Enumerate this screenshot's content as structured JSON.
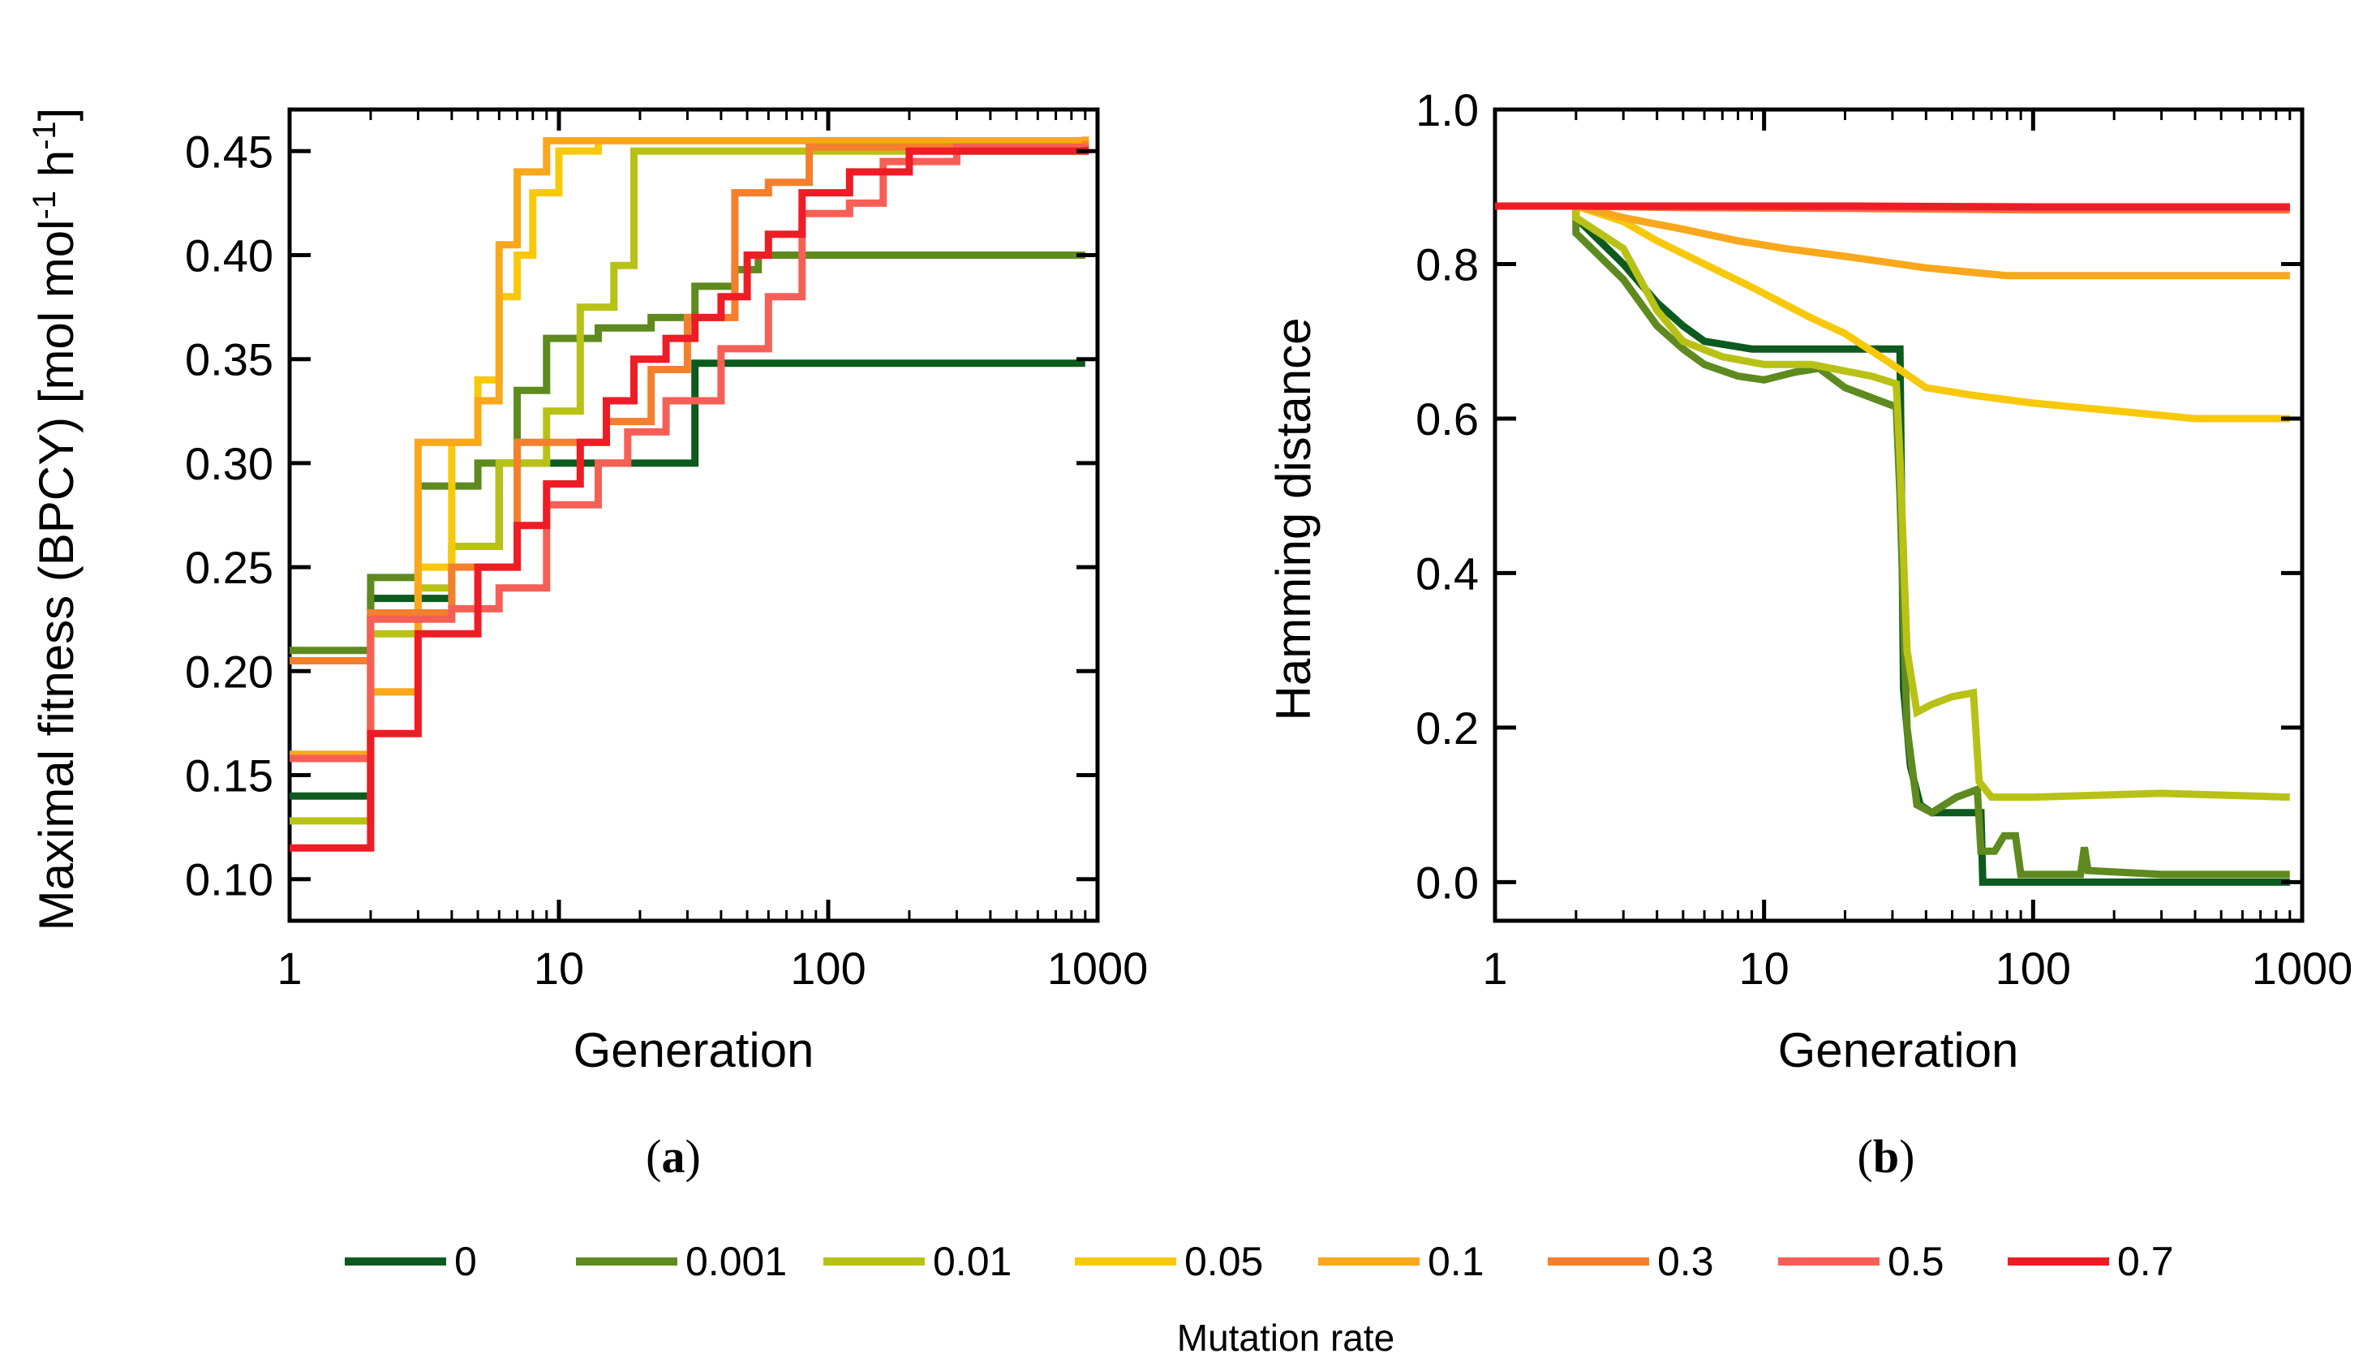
{
  "chart_data": [
    {
      "type": "line",
      "panel_label": "(a)",
      "panel_label_parts": [
        "(",
        "a",
        ")"
      ],
      "xlabel": "Generation",
      "ylabel": "Maximal fitness (BPCY) [mol mol-1 h-1]",
      "ylabel_parts": {
        "main": "Maximal fitness (BPCY) [mol mol",
        "sup1": "-1",
        "mid": " h",
        "sup2": "-1",
        "end": "]"
      },
      "xscale": "log",
      "xlim": [
        1,
        1000
      ],
      "ylim": [
        0.08,
        0.47
      ],
      "xticks": [
        1,
        10,
        100,
        1000
      ],
      "xtick_labels": [
        "1",
        "10",
        "100",
        "1000"
      ],
      "yticks": [
        0.1,
        0.15,
        0.2,
        0.25,
        0.3,
        0.35,
        0.4,
        0.45
      ],
      "ytick_labels": [
        "0.10",
        "0.15",
        "0.20",
        "0.25",
        "0.30",
        "0.35",
        "0.40",
        "0.45"
      ],
      "series": [
        {
          "name": "0",
          "points": [
            [
              1,
              0.14
            ],
            [
              2,
              0.235
            ],
            [
              4,
              0.26
            ],
            [
              6,
              0.3
            ],
            [
              32,
              0.348
            ],
            [
              900,
              0.348
            ]
          ]
        },
        {
          "name": "0.001",
          "points": [
            [
              1,
              0.21
            ],
            [
              2,
              0.245
            ],
            [
              3,
              0.289
            ],
            [
              5,
              0.3
            ],
            [
              7,
              0.335
            ],
            [
              9,
              0.36
            ],
            [
              14,
              0.365
            ],
            [
              22,
              0.37
            ],
            [
              32,
              0.385
            ],
            [
              45,
              0.393
            ],
            [
              55,
              0.4
            ],
            [
              900,
              0.4
            ]
          ]
        },
        {
          "name": "0.01",
          "points": [
            [
              1,
              0.128
            ],
            [
              2,
              0.218
            ],
            [
              3,
              0.24
            ],
            [
              4,
              0.26
            ],
            [
              6,
              0.3
            ],
            [
              9,
              0.325
            ],
            [
              12,
              0.375
            ],
            [
              16,
              0.395
            ],
            [
              19,
              0.45
            ],
            [
              900,
              0.455
            ]
          ]
        },
        {
          "name": "0.05",
          "points": [
            [
              1,
              0.16
            ],
            [
              2,
              0.19
            ],
            [
              3,
              0.25
            ],
            [
              4,
              0.31
            ],
            [
              5,
              0.34
            ],
            [
              6,
              0.38
            ],
            [
              7,
              0.4
            ],
            [
              8,
              0.43
            ],
            [
              10,
              0.45
            ],
            [
              14,
              0.455
            ],
            [
              900,
              0.456
            ]
          ]
        },
        {
          "name": "0.1",
          "points": [
            [
              1,
              0.16
            ],
            [
              2,
              0.19
            ],
            [
              3,
              0.31
            ],
            [
              5,
              0.33
            ],
            [
              6,
              0.405
            ],
            [
              7,
              0.44
            ],
            [
              9,
              0.455
            ],
            [
              900,
              0.457
            ]
          ]
        },
        {
          "name": "0.3",
          "points": [
            [
              1,
              0.205
            ],
            [
              2,
              0.228
            ],
            [
              4,
              0.25
            ],
            [
              7,
              0.31
            ],
            [
              15,
              0.32
            ],
            [
              22,
              0.345
            ],
            [
              30,
              0.37
            ],
            [
              45,
              0.43
            ],
            [
              60,
              0.435
            ],
            [
              85,
              0.452
            ],
            [
              900,
              0.455
            ]
          ]
        },
        {
          "name": "0.5",
          "points": [
            [
              1,
              0.158
            ],
            [
              2,
              0.225
            ],
            [
              4,
              0.23
            ],
            [
              6,
              0.24
            ],
            [
              9,
              0.28
            ],
            [
              14,
              0.3
            ],
            [
              18,
              0.315
            ],
            [
              25,
              0.33
            ],
            [
              40,
              0.355
            ],
            [
              60,
              0.38
            ],
            [
              80,
              0.42
            ],
            [
              120,
              0.425
            ],
            [
              160,
              0.445
            ],
            [
              300,
              0.452
            ],
            [
              900,
              0.453
            ]
          ]
        },
        {
          "name": "0.7",
          "points": [
            [
              1,
              0.115
            ],
            [
              2,
              0.17
            ],
            [
              3,
              0.218
            ],
            [
              5,
              0.25
            ],
            [
              7,
              0.27
            ],
            [
              9,
              0.29
            ],
            [
              12,
              0.31
            ],
            [
              15,
              0.33
            ],
            [
              19,
              0.35
            ],
            [
              25,
              0.36
            ],
            [
              32,
              0.37
            ],
            [
              40,
              0.38
            ],
            [
              50,
              0.4
            ],
            [
              60,
              0.41
            ],
            [
              80,
              0.43
            ],
            [
              120,
              0.44
            ],
            [
              200,
              0.45
            ],
            [
              900,
              0.452
            ]
          ]
        }
      ]
    },
    {
      "type": "line",
      "panel_label": "(b)",
      "panel_label_parts": [
        "(",
        "b",
        ")"
      ],
      "xlabel": "Generation",
      "ylabel": "Hamming distance",
      "xscale": "log",
      "xlim": [
        1,
        1000
      ],
      "ylim": [
        -0.05,
        1.0
      ],
      "xticks": [
        1,
        10,
        100,
        1000
      ],
      "xtick_labels": [
        "1",
        "10",
        "100",
        "1000"
      ],
      "yticks": [
        0.0,
        0.2,
        0.4,
        0.6,
        0.8,
        1.0
      ],
      "ytick_labels": [
        "0.0",
        "0.2",
        "0.4",
        "0.6",
        "0.8",
        "1.0"
      ],
      "series": [
        {
          "name": "0",
          "points": [
            [
              1,
              0.875
            ],
            [
              2,
              0.875
            ],
            [
              2,
              0.86
            ],
            [
              3,
              0.8
            ],
            [
              4,
              0.75
            ],
            [
              5,
              0.72
            ],
            [
              6,
              0.7
            ],
            [
              9,
              0.69
            ],
            [
              32,
              0.69
            ],
            [
              33,
              0.25
            ],
            [
              35,
              0.15
            ],
            [
              38,
              0.1
            ],
            [
              42,
              0.09
            ],
            [
              64,
              0.09
            ],
            [
              65,
              0.0
            ],
            [
              900,
              0.0
            ]
          ]
        },
        {
          "name": "0.001",
          "points": [
            [
              1,
              0.875
            ],
            [
              2,
              0.875
            ],
            [
              2,
              0.84
            ],
            [
              3,
              0.78
            ],
            [
              4,
              0.72
            ],
            [
              5,
              0.69
            ],
            [
              6,
              0.67
            ],
            [
              8,
              0.655
            ],
            [
              10,
              0.65
            ],
            [
              13,
              0.66
            ],
            [
              16,
              0.665
            ],
            [
              20,
              0.64
            ],
            [
              26,
              0.625
            ],
            [
              31,
              0.615
            ],
            [
              32,
              0.5
            ],
            [
              34,
              0.2
            ],
            [
              37,
              0.1
            ],
            [
              42,
              0.09
            ],
            [
              52,
              0.11
            ],
            [
              62,
              0.12
            ],
            [
              64,
              0.04
            ],
            [
              72,
              0.04
            ],
            [
              78,
              0.06
            ],
            [
              86,
              0.06
            ],
            [
              90,
              0.01
            ],
            [
              150,
              0.01
            ],
            [
              155,
              0.045
            ],
            [
              160,
              0.015
            ],
            [
              300,
              0.01
            ],
            [
              900,
              0.01
            ]
          ]
        },
        {
          "name": "0.01",
          "points": [
            [
              1,
              0.875
            ],
            [
              2,
              0.875
            ],
            [
              2,
              0.86
            ],
            [
              3,
              0.82
            ],
            [
              4,
              0.74
            ],
            [
              5,
              0.7
            ],
            [
              7,
              0.68
            ],
            [
              10,
              0.67
            ],
            [
              15,
              0.67
            ],
            [
              25,
              0.655
            ],
            [
              31,
              0.645
            ],
            [
              32,
              0.55
            ],
            [
              34,
              0.3
            ],
            [
              37,
              0.22
            ],
            [
              42,
              0.23
            ],
            [
              50,
              0.24
            ],
            [
              60,
              0.245
            ],
            [
              63,
              0.13
            ],
            [
              70,
              0.11
            ],
            [
              100,
              0.11
            ],
            [
              300,
              0.115
            ],
            [
              900,
              0.11
            ]
          ]
        },
        {
          "name": "0.05",
          "points": [
            [
              1,
              0.875
            ],
            [
              2,
              0.875
            ],
            [
              3,
              0.855
            ],
            [
              4,
              0.83
            ],
            [
              6,
              0.8
            ],
            [
              9,
              0.77
            ],
            [
              15,
              0.73
            ],
            [
              20,
              0.71
            ],
            [
              30,
              0.67
            ],
            [
              40,
              0.64
            ],
            [
              60,
              0.63
            ],
            [
              100,
              0.62
            ],
            [
              200,
              0.61
            ],
            [
              400,
              0.6
            ],
            [
              900,
              0.6
            ]
          ]
        },
        {
          "name": "0.1",
          "points": [
            [
              1,
              0.875
            ],
            [
              2,
              0.875
            ],
            [
              3,
              0.86
            ],
            [
              5,
              0.845
            ],
            [
              8,
              0.83
            ],
            [
              12,
              0.82
            ],
            [
              20,
              0.81
            ],
            [
              40,
              0.795
            ],
            [
              80,
              0.785
            ],
            [
              200,
              0.785
            ],
            [
              900,
              0.785
            ]
          ]
        },
        {
          "name": "0.3",
          "points": [
            [
              1,
              0.875
            ],
            [
              2,
              0.875
            ],
            [
              5,
              0.873
            ],
            [
              20,
              0.872
            ],
            [
              100,
              0.87
            ],
            [
              900,
              0.87
            ]
          ]
        },
        {
          "name": "0.5",
          "points": [
            [
              1,
              0.875
            ],
            [
              2,
              0.875
            ],
            [
              5,
              0.874
            ],
            [
              20,
              0.873
            ],
            [
              100,
              0.872
            ],
            [
              900,
              0.872
            ]
          ]
        },
        {
          "name": "0.7",
          "points": [
            [
              1,
              0.875
            ],
            [
              2,
              0.875
            ],
            [
              5,
              0.875
            ],
            [
              20,
              0.875
            ],
            [
              100,
              0.874
            ],
            [
              900,
              0.874
            ]
          ]
        }
      ]
    }
  ],
  "legend": {
    "title": "Mutation rate",
    "entries": [
      {
        "label": "0",
        "color": "#0d5a1e"
      },
      {
        "label": "0.001",
        "color": "#5e8a1f"
      },
      {
        "label": "0.01",
        "color": "#b8c216"
      },
      {
        "label": "0.05",
        "color": "#f7c90a"
      },
      {
        "label": "0.1",
        "color": "#f9a81c"
      },
      {
        "label": "0.3",
        "color": "#f47f2c"
      },
      {
        "label": "0.5",
        "color": "#f65f56"
      },
      {
        "label": "0.7",
        "color": "#ee1c25"
      }
    ]
  }
}
